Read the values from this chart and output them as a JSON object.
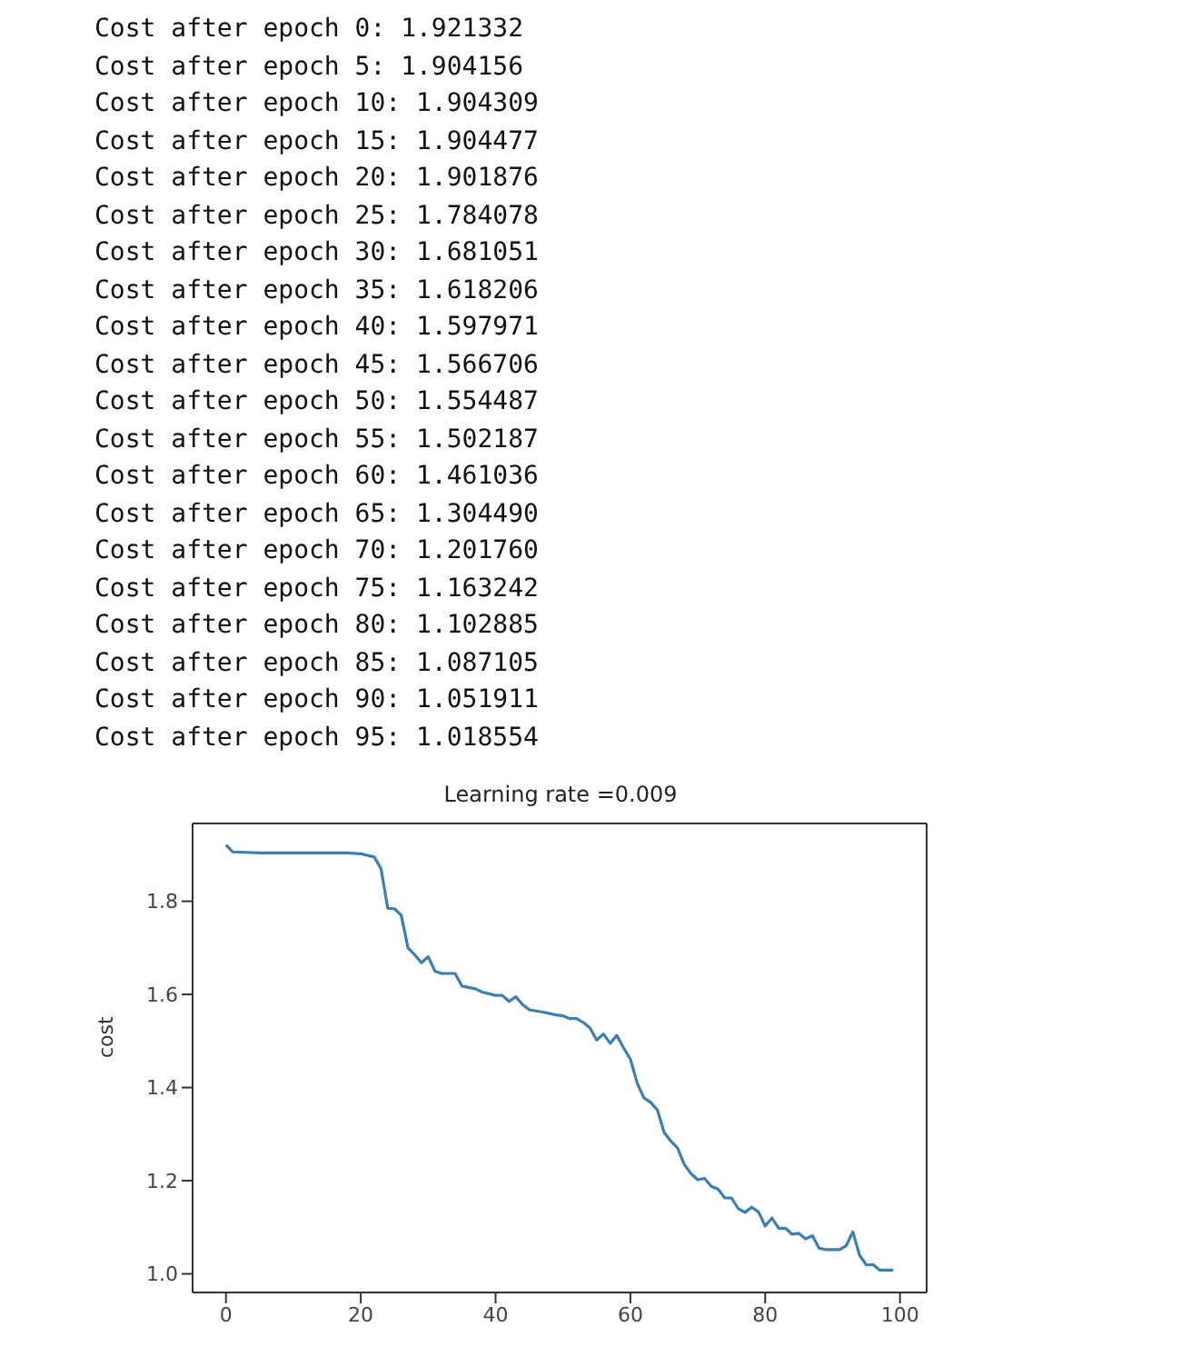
{
  "chart_data": {
    "type": "line",
    "title": "Learning rate =0.009",
    "ylabel": "cost",
    "annotations": [
      "Cost after epoch 0: 1.921332",
      "Cost after epoch 5: 1.904156",
      "Cost after epoch 10: 1.904309",
      "Cost after epoch 15: 1.904477",
      "Cost after epoch 20: 1.901876",
      "Cost after epoch 25: 1.784078",
      "Cost after epoch 30: 1.681051",
      "Cost after epoch 35: 1.618206",
      "Cost after epoch 40: 1.597971",
      "Cost after epoch 45: 1.566706",
      "Cost after epoch 50: 1.554487",
      "Cost after epoch 55: 1.502187",
      "Cost after epoch 60: 1.461036",
      "Cost after epoch 65: 1.304490",
      "Cost after epoch 70: 1.201760",
      "Cost after epoch 75: 1.163242",
      "Cost after epoch 80: 1.102885",
      "Cost after epoch 85: 1.087105",
      "Cost after epoch 90: 1.051911",
      "Cost after epoch 95: 1.018554"
    ],
    "x": [
      0,
      1,
      5,
      10,
      15,
      18,
      20,
      22,
      23,
      24,
      25,
      26,
      27,
      28,
      29,
      30,
      31,
      32,
      34,
      35,
      36,
      37,
      38,
      40,
      41,
      42,
      43,
      44,
      45,
      47,
      49,
      50,
      51,
      52,
      53,
      54,
      55,
      56,
      57,
      58,
      59,
      60,
      61,
      62,
      63,
      64,
      65,
      66,
      67,
      68,
      69,
      70,
      71,
      72,
      73,
      74,
      75,
      76,
      77,
      78,
      79,
      80,
      81,
      82,
      83,
      84,
      85,
      86,
      87,
      88,
      89,
      90,
      91,
      92,
      93,
      94,
      95,
      96,
      97,
      98,
      99
    ],
    "series": [
      {
        "color": "#3a7fb5",
        "values": [
          1.921,
          1.906,
          1.904,
          1.904,
          1.904,
          1.904,
          1.902,
          1.895,
          1.87,
          1.785,
          1.784,
          1.77,
          1.7,
          1.685,
          1.668,
          1.681,
          1.65,
          1.645,
          1.645,
          1.618,
          1.615,
          1.612,
          1.605,
          1.598,
          1.598,
          1.585,
          1.595,
          1.578,
          1.567,
          1.562,
          1.556,
          1.554,
          1.548,
          1.548,
          1.54,
          1.528,
          1.502,
          1.515,
          1.495,
          1.512,
          1.485,
          1.461,
          1.41,
          1.378,
          1.368,
          1.352,
          1.304,
          1.285,
          1.27,
          1.235,
          1.215,
          1.202,
          1.205,
          1.188,
          1.182,
          1.163,
          1.163,
          1.14,
          1.132,
          1.143,
          1.133,
          1.103,
          1.12,
          1.098,
          1.098,
          1.085,
          1.087,
          1.075,
          1.082,
          1.055,
          1.052,
          1.052,
          1.052,
          1.06,
          1.09,
          1.04,
          1.019,
          1.02,
          1.008,
          1.008,
          1.008
        ]
      }
    ],
    "xlim": [
      -4.95,
      103.95
    ],
    "xticks": [
      0,
      20,
      40,
      60,
      80,
      100
    ],
    "ylim": [
      0.96,
      1.967
    ],
    "yticks": [
      {
        "value": 1,
        "label": "1.0"
      },
      1.2,
      1.4,
      1.6,
      1.8
    ]
  }
}
